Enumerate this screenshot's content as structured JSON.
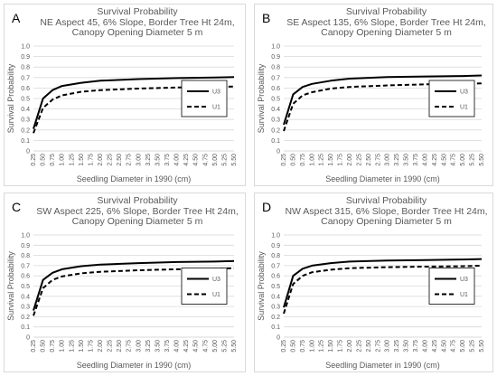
{
  "chart_data": [
    {
      "panel_letter": "A",
      "type": "line",
      "title": "Survival Probability",
      "subtitle": [
        "NE Aspect 45, 6% Slope, Border Tree Ht 24m,",
        "Canopy Opening Diameter 5 m"
      ],
      "xlabel": "Seedling Diameter in 1990 (cm)",
      "ylabel": "Survival Probability",
      "x_ticks": [
        "0.25",
        "0.50",
        "0.75",
        "1.00",
        "1.25",
        "1.50",
        "1.75",
        "2.00",
        "2.25",
        "2.50",
        "2.75",
        "3.00",
        "3.25",
        "3.50",
        "3.75",
        "4.00",
        "4.25",
        "4.50",
        "4.75",
        "5.00",
        "5.25",
        "5.50"
      ],
      "y_ticks": [
        "0",
        "0.1",
        "0.2",
        "0.3",
        "0.4",
        "0.5",
        "0.6",
        "0.7",
        "0.8",
        "0.9",
        "1.0"
      ],
      "xlim": [
        0.25,
        5.5
      ],
      "ylim": [
        0,
        1
      ],
      "grid": "horizontal",
      "legend_position": "right",
      "x": [
        0.25,
        0.5,
        0.75,
        1.0,
        1.5,
        2.0,
        3.0,
        4.0,
        5.0,
        5.5
      ],
      "series": [
        {
          "name": "U3",
          "style": "solid",
          "color": "#000000",
          "values": [
            0.21,
            0.5,
            0.58,
            0.62,
            0.65,
            0.67,
            0.685,
            0.695,
            0.7,
            0.705
          ]
        },
        {
          "name": "U1",
          "style": "dashed",
          "color": "#000000",
          "values": [
            0.17,
            0.41,
            0.49,
            0.53,
            0.565,
            0.58,
            0.595,
            0.605,
            0.61,
            0.615
          ]
        }
      ]
    },
    {
      "panel_letter": "B",
      "type": "line",
      "title": "Survival Probability",
      "subtitle": [
        "SE Aspect 135, 6% Slope, Border Tree Ht 24m,",
        "Canopy Opening Diameter 5 m"
      ],
      "xlabel": "Seedling Diameter in 1990 (cm)",
      "ylabel": "Survival Probability",
      "x_ticks": [
        "0.25",
        "0.50",
        "0.75",
        "1.00",
        "1.25",
        "1.50",
        "1.75",
        "2.00",
        "2.25",
        "2.50",
        "2.75",
        "3.00",
        "3.25",
        "3.50",
        "3.75",
        "4.00",
        "4.25",
        "4.50",
        "4.75",
        "5.00",
        "5.25",
        "5.50"
      ],
      "y_ticks": [
        "0",
        "0.1",
        "0.2",
        "0.3",
        "0.4",
        "0.5",
        "0.6",
        "0.7",
        "0.8",
        "0.9",
        "1.0"
      ],
      "xlim": [
        0.25,
        5.5
      ],
      "ylim": [
        0,
        1
      ],
      "grid": "horizontal",
      "legend_position": "right",
      "x": [
        0.25,
        0.5,
        0.75,
        1.0,
        1.5,
        2.0,
        3.0,
        4.0,
        5.0,
        5.5
      ],
      "series": [
        {
          "name": "U3",
          "style": "solid",
          "color": "#000000",
          "values": [
            0.25,
            0.54,
            0.61,
            0.64,
            0.67,
            0.69,
            0.705,
            0.71,
            0.715,
            0.72
          ]
        },
        {
          "name": "U1",
          "style": "dashed",
          "color": "#000000",
          "values": [
            0.19,
            0.45,
            0.53,
            0.56,
            0.595,
            0.61,
            0.625,
            0.635,
            0.64,
            0.645
          ]
        }
      ]
    },
    {
      "panel_letter": "C",
      "type": "line",
      "title": "Survival Probability",
      "subtitle": [
        "SW Aspect 225, 6% Slope, Border Tree Ht 24m,",
        "Canopy Opening Diameter 5 m"
      ],
      "xlabel": "Seedling Diameter in 1990 (cm)",
      "ylabel": "Survival Probability",
      "x_ticks": [
        "0.25",
        "0.50",
        "0.75",
        "1.00",
        "1.25",
        "1.50",
        "1.75",
        "2.00",
        "2.25",
        "2.50",
        "2.75",
        "3.00",
        "3.25",
        "3.50",
        "3.75",
        "4.00",
        "4.25",
        "4.50",
        "4.75",
        "5.00",
        "5.25",
        "5.50"
      ],
      "y_ticks": [
        "0",
        "0.1",
        "0.2",
        "0.3",
        "0.4",
        "0.5",
        "0.6",
        "0.7",
        "0.8",
        "0.9",
        "1.0"
      ],
      "xlim": [
        0.25,
        5.5
      ],
      "ylim": [
        0,
        1
      ],
      "grid": "horizontal",
      "legend_position": "right",
      "x": [
        0.25,
        0.5,
        0.75,
        1.0,
        1.5,
        2.0,
        3.0,
        4.0,
        5.0,
        5.5
      ],
      "series": [
        {
          "name": "U3",
          "style": "solid",
          "color": "#000000",
          "values": [
            0.26,
            0.56,
            0.63,
            0.665,
            0.695,
            0.71,
            0.725,
            0.735,
            0.74,
            0.745
          ]
        },
        {
          "name": "U1",
          "style": "dashed",
          "color": "#000000",
          "values": [
            0.21,
            0.48,
            0.56,
            0.595,
            0.625,
            0.64,
            0.655,
            0.665,
            0.67,
            0.675
          ]
        }
      ]
    },
    {
      "panel_letter": "D",
      "type": "line",
      "title": "Survival Probability",
      "subtitle": [
        "NW Aspect 315, 6% Slope, Border Tree Ht 24m,",
        "Canopy Opening Diameter 5 m"
      ],
      "xlabel": "Seedling Diameter in 1990 (cm)",
      "ylabel": "Survival Probability",
      "x_ticks": [
        "0.25",
        "0.50",
        "0.75",
        "1.00",
        "1.25",
        "1.50",
        "1.75",
        "2.00",
        "2.25",
        "2.50",
        "2.75",
        "3.00",
        "3.25",
        "3.50",
        "3.75",
        "4.00",
        "4.25",
        "4.50",
        "4.75",
        "5.00",
        "5.25",
        "5.50"
      ],
      "y_ticks": [
        "0",
        "0.1",
        "0.2",
        "0.3",
        "0.4",
        "0.5",
        "0.6",
        "0.7",
        "0.8",
        "0.9",
        "1.0"
      ],
      "xlim": [
        0.25,
        5.5
      ],
      "ylim": [
        0,
        1
      ],
      "grid": "horizontal",
      "legend_position": "right",
      "x": [
        0.25,
        0.5,
        0.75,
        1.0,
        1.5,
        2.0,
        3.0,
        4.0,
        5.0,
        5.5
      ],
      "series": [
        {
          "name": "U3",
          "style": "solid",
          "color": "#000000",
          "values": [
            0.29,
            0.6,
            0.67,
            0.7,
            0.725,
            0.74,
            0.75,
            0.755,
            0.76,
            0.765
          ]
        },
        {
          "name": "U1",
          "style": "dashed",
          "color": "#000000",
          "values": [
            0.23,
            0.52,
            0.6,
            0.635,
            0.66,
            0.675,
            0.685,
            0.69,
            0.695,
            0.7
          ]
        }
      ]
    }
  ],
  "colors": {
    "grid": "#d9d9d9",
    "text": "#595959",
    "border": "#d9d9d9",
    "line": "#000000"
  }
}
